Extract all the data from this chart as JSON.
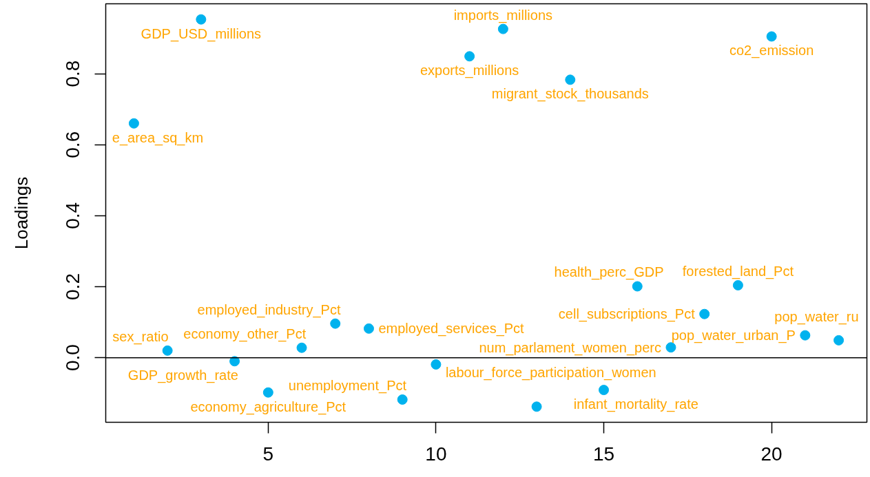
{
  "chart_data": {
    "type": "scatter",
    "ylabel": "Loadings",
    "x": [
      1,
      2,
      3,
      4,
      5,
      6,
      7,
      8,
      9,
      10,
      11,
      12,
      13,
      14,
      15,
      16,
      17,
      18,
      19,
      20,
      21,
      22
    ],
    "series": [
      {
        "color": "#00b2ee",
        "values": [
          0.66,
          0.02,
          0.953,
          -0.01,
          -0.098,
          0.028,
          0.096,
          0.082,
          -0.118,
          -0.019,
          0.849,
          0.926,
          -0.138,
          0.783,
          -0.091,
          0.201,
          0.029,
          0.123,
          0.204,
          0.905,
          0.063,
          0.049
        ]
      }
    ],
    "marker": "circle",
    "xlim": [
      0.16,
      22.84
    ],
    "ylim": [
      -0.182,
      0.997
    ],
    "xticks": [
      5,
      10,
      15,
      20
    ],
    "yticks": [
      {
        "value": 0,
        "label": "0.0"
      },
      {
        "value": 0.2,
        "label": "0.2"
      },
      {
        "value": 0.4,
        "label": "0.4"
      },
      {
        "value": 0.6,
        "label": "0.6"
      },
      {
        "value": 0.8,
        "label": "0.8"
      }
    ],
    "ref_lines": [
      {
        "axis": "y",
        "value": 0,
        "color": "#000000"
      }
    ],
    "annotations": [
      {
        "text": "e_area_sq_km",
        "x": 1,
        "y": 0.66
      },
      {
        "text": "sex_ratio",
        "x": 2,
        "y": 0.02
      },
      {
        "text": "GDP_USD_millions",
        "x": 3,
        "y": 0.953
      },
      {
        "text": "GDP_growth_rate",
        "x": 4,
        "y": -0.01
      },
      {
        "text": "economy_agriculture_Pct",
        "x": 5,
        "y": -0.098
      },
      {
        "text": "economy_other_Pct",
        "x": 6,
        "y": 0.028
      },
      {
        "text": "employed_industry_Pct",
        "x": 7,
        "y": 0.096
      },
      {
        "text": "employed_services_Pct",
        "x": 8,
        "y": 0.082
      },
      {
        "text": "unemployment_Pct",
        "x": 9,
        "y": -0.118
      },
      {
        "text": "labour_force_participation_women",
        "x": 10,
        "y": -0.019
      },
      {
        "text": "exports_millions",
        "x": 11,
        "y": 0.849
      },
      {
        "text": "imports_millions",
        "x": 12,
        "y": 0.926
      },
      {
        "text": "migrant_stock_thousands",
        "x": 14,
        "y": 0.783
      },
      {
        "text": "infant_mortality_rate",
        "x": 15,
        "y": -0.091
      },
      {
        "text": "health_perc_GDP",
        "x": 16,
        "y": 0.201
      },
      {
        "text": "num_parlament_women_perc",
        "x": 17,
        "y": 0.029
      },
      {
        "text": "cell_subscriptions_Pct",
        "x": 18,
        "y": 0.123
      },
      {
        "text": "forested_land_Pct",
        "x": 19,
        "y": 0.204
      },
      {
        "text": "co2_emission",
        "x": 20,
        "y": 0.905
      },
      {
        "text": "pop_water_urban_P",
        "x": 21,
        "y": 0.063
      },
      {
        "text": "pop_water_ru",
        "x": 22,
        "y": 0.049
      }
    ]
  }
}
